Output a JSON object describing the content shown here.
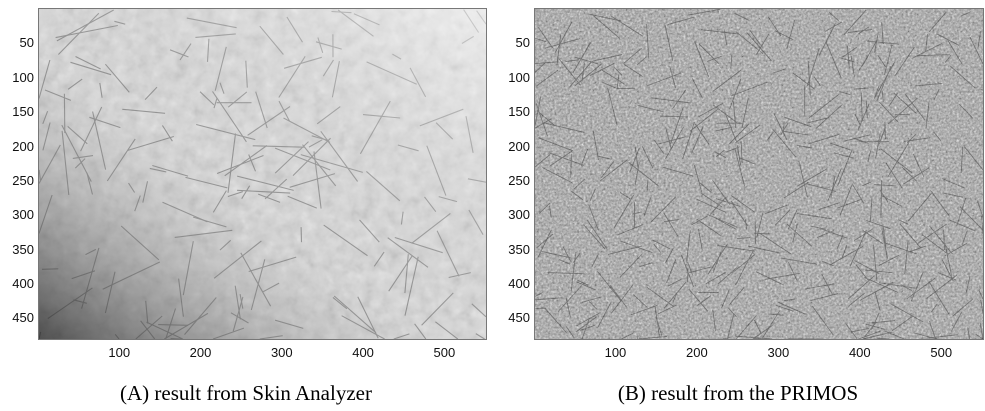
{
  "panels": [
    {
      "id": "A",
      "caption": "(A) result from Skin Analyzer",
      "texture": "skin-analyzer-grayscale",
      "y_ticks": [
        "50",
        "100",
        "150",
        "200",
        "250",
        "300",
        "350",
        "400",
        "450"
      ],
      "x_ticks": [
        "100",
        "200",
        "300",
        "400",
        "500"
      ],
      "x_range": [
        0,
        550
      ],
      "y_range": [
        0,
        480
      ]
    },
    {
      "id": "B",
      "caption": "(B) result from the PRIMOS",
      "texture": "primos-grayscale",
      "y_ticks": [
        "50",
        "100",
        "150",
        "200",
        "250",
        "300",
        "350",
        "400",
        "450"
      ],
      "x_ticks": [
        "100",
        "200",
        "300",
        "400",
        "500"
      ],
      "x_range": [
        0,
        550
      ],
      "y_range": [
        0,
        480
      ]
    }
  ],
  "colors": {
    "background": "#ffffff",
    "frame": "#777777",
    "texture_light": "#f2f2f2",
    "texture_dark": "#1a1a1a"
  }
}
